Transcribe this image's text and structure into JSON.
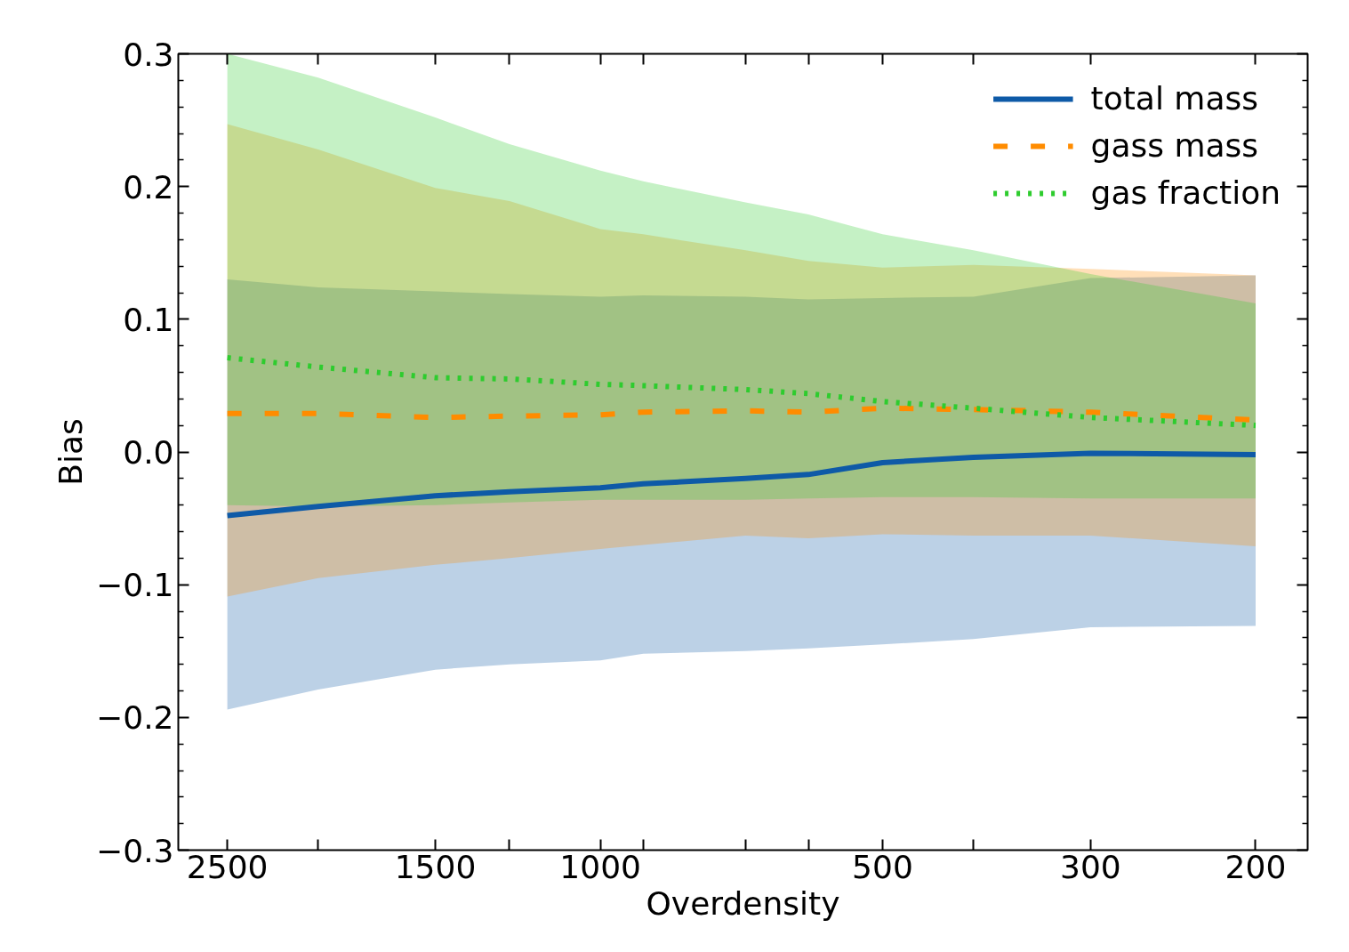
{
  "chart_data": {
    "type": "line",
    "xlabel": "Overdensity",
    "ylabel": "Bias",
    "log": "x",
    "grid": false,
    "legend": "top right",
    "x": [
      2500,
      2000,
      1500,
      1250,
      1000,
      900,
      700,
      600,
      500,
      400,
      300,
      200
    ],
    "xlim": [
      2820,
      176
    ],
    "xticks": [
      2500,
      {
        "value": 2000,
        "label": null
      },
      1500,
      {
        "value": 1250,
        "label": null
      },
      1000,
      {
        "value": 900,
        "label": null
      },
      {
        "value": 700,
        "label": null
      },
      {
        "value": 600,
        "label": null
      },
      500,
      {
        "value": 400,
        "label": null
      },
      300,
      200
    ],
    "ylim": [
      -0.3,
      0.3
    ],
    "yticks": [
      {
        "value": -0.3,
        "label": "−0.3"
      },
      {
        "value": -0.2,
        "label": "−0.2"
      },
      {
        "value": -0.1,
        "label": "−0.1"
      },
      {
        "value": 0,
        "label": "0.0"
      },
      0.1,
      0.2,
      0.3
    ],
    "series": [
      {
        "name": "total mass",
        "color": "#0e5aa7",
        "line_style": "solid",
        "values": [
          -0.048,
          -0.041,
          -0.033,
          -0.03,
          -0.027,
          -0.024,
          -0.02,
          -0.017,
          -0.008,
          -0.004,
          -0.001,
          -0.002
        ],
        "lower": [
          -0.194,
          -0.179,
          -0.164,
          -0.16,
          -0.157,
          -0.152,
          -0.15,
          -0.148,
          -0.145,
          -0.141,
          -0.132,
          -0.131
        ],
        "upper": [
          0.13,
          0.124,
          0.121,
          0.119,
          0.117,
          0.118,
          0.117,
          0.115,
          0.116,
          0.117,
          0.131,
          0.133
        ]
      },
      {
        "name": "gass mass",
        "color": "#ff8c00",
        "line_style": "dashed",
        "values": [
          0.029,
          0.029,
          0.026,
          0.027,
          0.028,
          0.03,
          0.031,
          0.03,
          0.033,
          0.032,
          0.03,
          0.024
        ],
        "lower": [
          -0.109,
          -0.095,
          -0.085,
          -0.08,
          -0.073,
          -0.07,
          -0.063,
          -0.065,
          -0.062,
          -0.063,
          -0.063,
          -0.071
        ],
        "upper": [
          0.247,
          0.228,
          0.199,
          0.189,
          0.168,
          0.164,
          0.152,
          0.144,
          0.139,
          0.141,
          0.138,
          0.133
        ]
      },
      {
        "name": "gas fraction",
        "color": "#2ecc2e",
        "line_style": "dotted",
        "values": [
          0.071,
          0.064,
          0.056,
          0.055,
          0.051,
          0.05,
          0.047,
          0.044,
          0.038,
          0.033,
          0.026,
          0.02
        ],
        "lower": [
          -0.04,
          -0.041,
          -0.04,
          -0.038,
          -0.036,
          -0.036,
          -0.036,
          -0.035,
          -0.034,
          -0.034,
          -0.035,
          -0.035
        ],
        "upper": [
          0.3,
          0.282,
          0.252,
          0.232,
          0.212,
          0.204,
          0.188,
          0.179,
          0.164,
          0.152,
          0.134,
          0.112
        ]
      }
    ]
  }
}
